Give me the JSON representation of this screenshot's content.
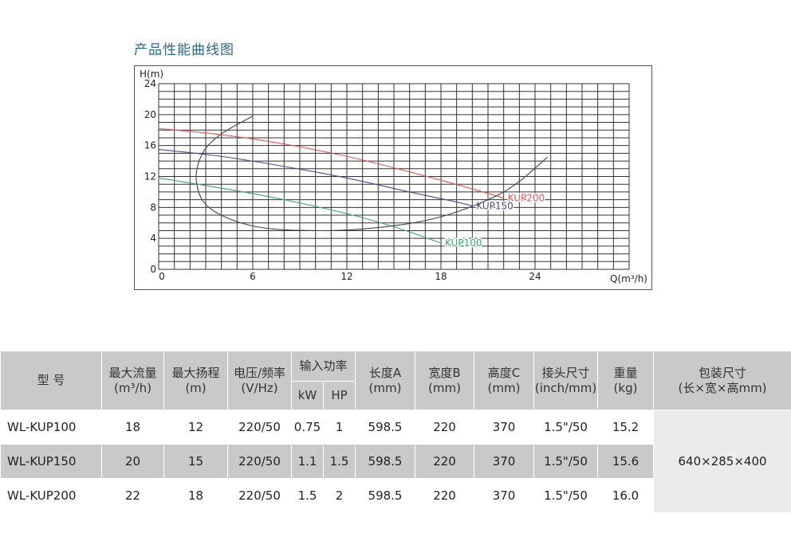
{
  "title": "产品性能曲线图",
  "chart_data": {
    "type": "line",
    "ylabel": "H(m)",
    "xlabel": "Q(m³/h)",
    "xlim": [
      0,
      30
    ],
    "ylim": [
      0,
      24
    ],
    "x_ticks": [
      0,
      6,
      12,
      18,
      24
    ],
    "y_ticks": [
      0,
      4,
      8,
      12,
      16,
      20,
      24
    ],
    "grid": true,
    "series": [
      {
        "name": "KUP200",
        "color": "#e05a5a",
        "points": [
          [
            0,
            18.2
          ],
          [
            4,
            17.4
          ],
          [
            8,
            16.2
          ],
          [
            12,
            14.6
          ],
          [
            16,
            12.6
          ],
          [
            20,
            10.4
          ],
          [
            22,
            9.2
          ]
        ]
      },
      {
        "name": "KUP150",
        "color": "#4a4a8a",
        "points": [
          [
            0,
            15.5
          ],
          [
            4,
            14.6
          ],
          [
            8,
            13.3
          ],
          [
            12,
            11.8
          ],
          [
            16,
            10.0
          ],
          [
            19,
            8.7
          ],
          [
            20,
            8.2
          ]
        ]
      },
      {
        "name": "KUP100",
        "color": "#3aaa6a",
        "points": [
          [
            0,
            11.8
          ],
          [
            4,
            10.5
          ],
          [
            8,
            9.0
          ],
          [
            12,
            7.2
          ],
          [
            15,
            5.5
          ],
          [
            18,
            3.4
          ]
        ]
      },
      {
        "name": "",
        "color": "#444444",
        "points": [
          [
            6,
            19.8
          ],
          [
            4,
            17.5
          ],
          [
            2.8,
            15.0
          ],
          [
            2.4,
            11.5
          ],
          [
            3.2,
            8.0
          ],
          [
            6,
            5.6
          ],
          [
            10,
            5.0
          ],
          [
            14,
            5.4
          ],
          [
            18,
            6.8
          ],
          [
            22,
            10.0
          ],
          [
            24.8,
            14.5
          ]
        ]
      }
    ]
  },
  "table": {
    "headers": {
      "model": "型 号",
      "max_flow": "最大流量",
      "max_flow_unit": "(m³/h)",
      "max_head": "最大扬程",
      "max_head_unit": "(m)",
      "voltage": "电压/频率",
      "voltage_unit": "(V/Hz)",
      "power": "输入功率",
      "power_kw": "kW",
      "power_hp": "HP",
      "length": "长度A",
      "length_unit": "(mm)",
      "width": "宽度B",
      "width_unit": "(mm)",
      "height": "高度C",
      "height_unit": "(mm)",
      "connector": "接头尺寸",
      "connector_unit": "(inch/mm)",
      "weight": "重量",
      "weight_unit": "(kg)",
      "package": "包装尺寸",
      "package_unit": "(长×宽×高mm)"
    },
    "rows": [
      {
        "model": "WL-KUP100",
        "flow": "18",
        "head": "12",
        "voltage": "220/50",
        "kw": "0.75",
        "hp": "1",
        "length": "598.5",
        "width": "220",
        "height": "370",
        "connector": "1.5\"/50",
        "weight": "15.2"
      },
      {
        "model": "WL-KUP150",
        "flow": "20",
        "head": "15",
        "voltage": "220/50",
        "kw": "1.1",
        "hp": "1.5",
        "length": "598.5",
        "width": "220",
        "height": "370",
        "connector": "1.5\"/50",
        "weight": "15.6"
      },
      {
        "model": "WL-KUP200",
        "flow": "22",
        "head": "18",
        "voltage": "220/50",
        "kw": "1.5",
        "hp": "2",
        "length": "598.5",
        "width": "220",
        "height": "370",
        "connector": "1.5\"/50",
        "weight": "16.0"
      }
    ],
    "package": "640×285×400"
  }
}
